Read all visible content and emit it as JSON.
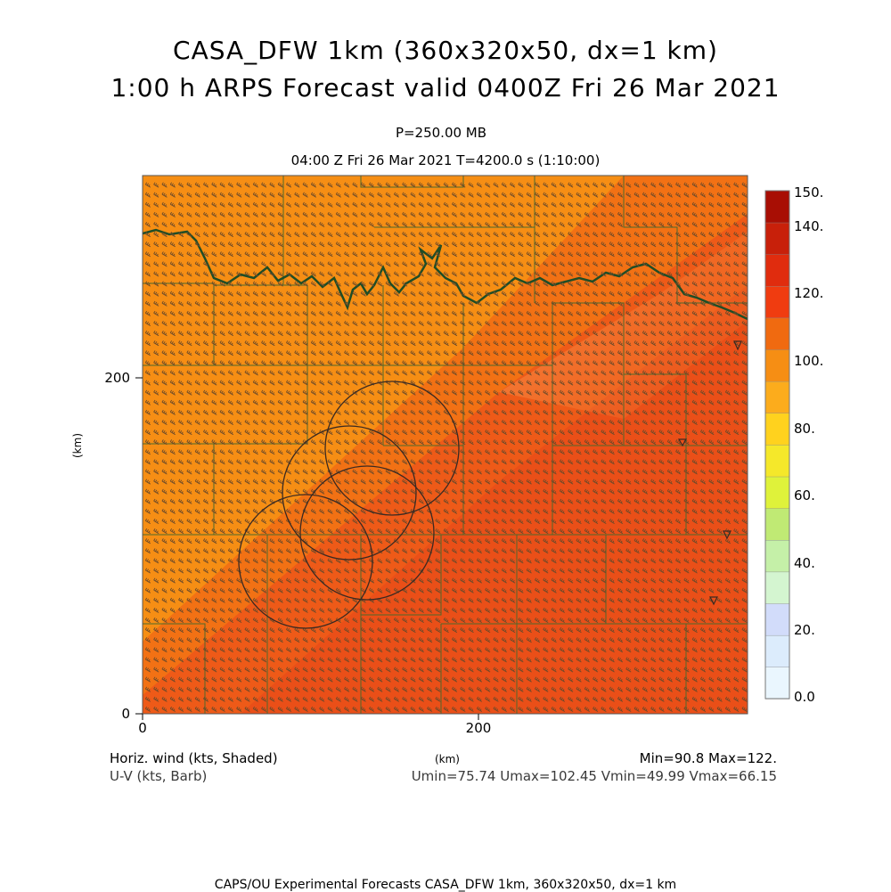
{
  "header": {
    "title_line1": "CASA_DFW 1km (360x320x50, dx=1 km)",
    "title_line2": "1:00 h ARPS Forecast valid 0400Z Fri 26 Mar 2021",
    "level": "P=250.00 MB",
    "time": "04:00 Z Fri 26 Mar 2021    T=4200.0 s (1:10:00)"
  },
  "map": {
    "x_unit": "(km)",
    "y_unit": "(km)",
    "x_ticks": [
      {
        "value": 0,
        "label": "0"
      },
      {
        "value": 200,
        "label": "200"
      }
    ],
    "y_ticks": [
      {
        "value": 0,
        "label": "0"
      },
      {
        "value": 200,
        "label": "200"
      }
    ],
    "x_range": [
      0,
      360
    ],
    "y_range": [
      0,
      320
    ],
    "barb_color": "#6b4a2a",
    "county_line_color": "#4e6a2c",
    "state_border_color": "#1f4d26"
  },
  "colorbar": {
    "labels": [
      "150.",
      "140.",
      "120.",
      "100.",
      "80.",
      "60.",
      "40.",
      "20.",
      "0.0"
    ],
    "colors": [
      "#eaf6fe",
      "#dcecfc",
      "#d2dcfa",
      "#d4f5d0",
      "#c5f0a8",
      "#c0ea74",
      "#dff23a",
      "#f5e82a",
      "#ffd21e",
      "#fcac1c",
      "#f68e14",
      "#f06a10",
      "#f03c10",
      "#e02c0e",
      "#c8200a",
      "#a80e04"
    ]
  },
  "legend": {
    "left_line1": "Horiz. wind (kts, Shaded)",
    "left_line2": "U-V (kts, Barb)",
    "minmax": "Min=90.8 Max=122.",
    "uv_stats": "Umin=75.74 Umax=102.45 Vmin=49.99 Vmax=66.15"
  },
  "footer": "CAPS/OU Experimental Forecasts  CASA_DFW 1km, 360x320x50, dx=1 km"
}
